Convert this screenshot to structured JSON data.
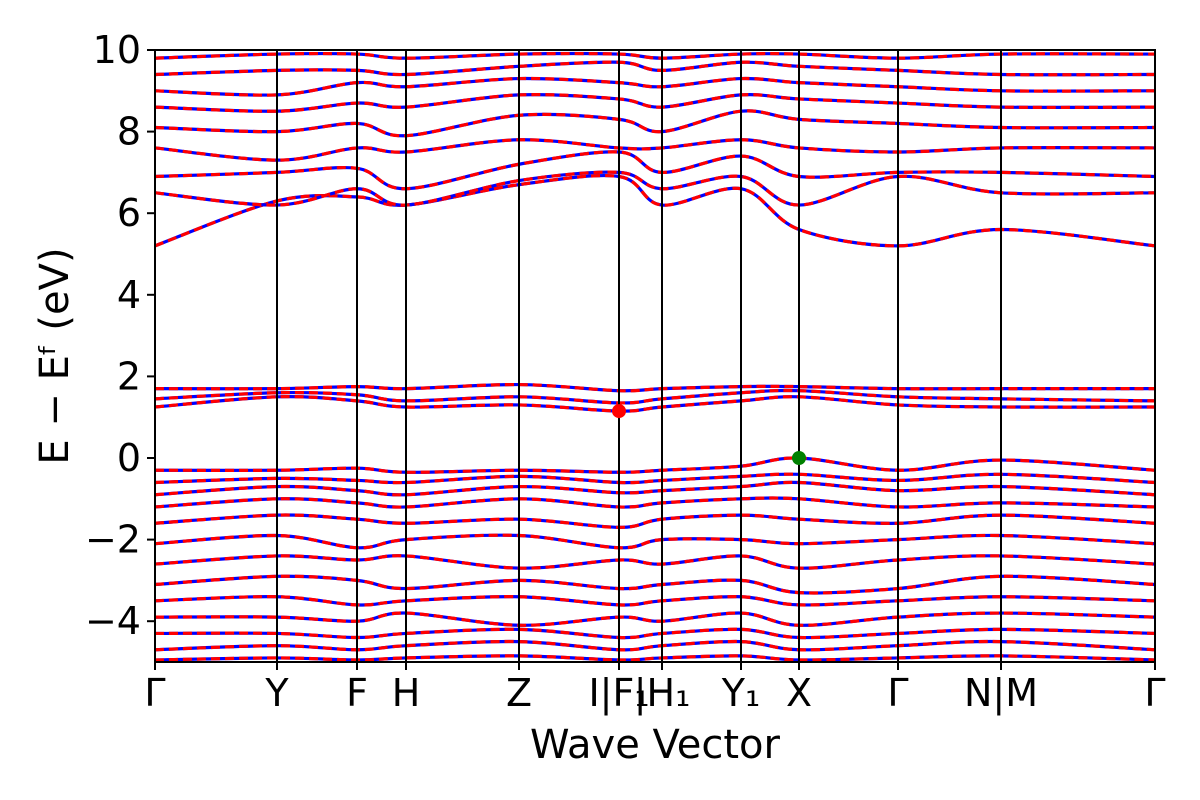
{
  "chart_data": {
    "type": "line",
    "title": "",
    "xlabel": "Wave Vector",
    "ylabel": "E − Eᶠ (eV)",
    "ylim": [
      -5,
      10
    ],
    "yticks": [
      {
        "value": 10,
        "label": "10"
      },
      {
        "value": 8,
        "label": "8"
      },
      {
        "value": 6,
        "label": "6"
      },
      {
        "value": 4,
        "label": "4"
      },
      {
        "value": 2,
        "label": "2"
      },
      {
        "value": 0,
        "label": "0"
      },
      {
        "value": -2,
        "label": "−2"
      },
      {
        "value": -4,
        "label": "−4"
      }
    ],
    "grid": false,
    "kpath": {
      "xlim": [
        0,
        1
      ],
      "points": [
        {
          "x": 0.0,
          "label": "Γ"
        },
        {
          "x": 0.122,
          "label": "Y"
        },
        {
          "x": 0.202,
          "label": "F"
        },
        {
          "x": 0.251,
          "label": "H"
        },
        {
          "x": 0.364,
          "label": "Z"
        },
        {
          "x": 0.464,
          "label": "I|F₁"
        },
        {
          "x": 0.507,
          "label": "|H₁"
        },
        {
          "x": 0.586,
          "label": "Y₁"
        },
        {
          "x": 0.644,
          "label": "X"
        },
        {
          "x": 0.743,
          "label": "Γ"
        },
        {
          "x": 0.846,
          "label": "N|M"
        },
        {
          "x": 1.0,
          "label": "Γ"
        }
      ]
    },
    "series_colors": {
      "line_a": "#ff0000",
      "line_b": "#0000ff"
    },
    "markers": [
      {
        "x": 0.464,
        "y": 1.15,
        "color": "#ff0000"
      },
      {
        "x": 0.644,
        "y": 0.0,
        "color": "#008000"
      }
    ],
    "bands": [
      {
        "x": [
          0,
          0.122,
          0.202,
          0.251,
          0.364,
          0.464,
          0.507,
          0.586,
          0.644,
          0.743,
          0.846,
          1.0
        ],
        "y": [
          5.2,
          6.3,
          6.4,
          6.2,
          6.7,
          6.9,
          6.2,
          6.6,
          5.6,
          5.2,
          5.6,
          5.2
        ]
      },
      {
        "x": [
          0,
          0.122,
          0.202,
          0.251,
          0.364,
          0.464,
          0.507,
          0.586,
          0.644,
          0.743,
          0.846,
          1.0
        ],
        "y": [
          6.5,
          6.2,
          6.6,
          6.2,
          6.8,
          7.0,
          6.6,
          6.9,
          6.2,
          6.9,
          6.5,
          6.5
        ]
      },
      {
        "x": [
          0,
          0.122,
          0.202,
          0.251,
          0.364,
          0.464,
          0.507,
          0.586,
          0.644,
          0.743,
          0.846,
          1.0
        ],
        "y": [
          6.9,
          7.0,
          7.1,
          6.6,
          7.2,
          7.5,
          7.0,
          7.4,
          6.9,
          7.0,
          7.0,
          6.9
        ]
      },
      {
        "x": [
          0,
          0.122,
          0.202,
          0.251,
          0.364,
          0.464,
          0.507,
          0.586,
          0.644,
          0.743,
          0.846,
          1.0
        ],
        "y": [
          7.6,
          7.3,
          7.6,
          7.5,
          7.8,
          7.6,
          7.6,
          7.8,
          7.6,
          7.5,
          7.6,
          7.6
        ]
      },
      {
        "x": [
          0,
          0.122,
          0.202,
          0.251,
          0.364,
          0.464,
          0.507,
          0.586,
          0.644,
          0.743,
          0.846,
          1.0
        ],
        "y": [
          8.1,
          8.0,
          8.2,
          7.9,
          8.4,
          8.3,
          8.0,
          8.5,
          8.3,
          8.2,
          8.1,
          8.1
        ]
      },
      {
        "x": [
          0,
          0.122,
          0.202,
          0.251,
          0.364,
          0.464,
          0.507,
          0.586,
          0.644,
          0.743,
          0.846,
          1.0
        ],
        "y": [
          8.6,
          8.5,
          8.7,
          8.6,
          8.9,
          8.8,
          8.6,
          8.9,
          8.8,
          8.7,
          8.6,
          8.6
        ]
      },
      {
        "x": [
          0,
          0.122,
          0.202,
          0.251,
          0.364,
          0.464,
          0.507,
          0.586,
          0.644,
          0.743,
          0.846,
          1.0
        ],
        "y": [
          9.0,
          8.9,
          9.2,
          9.1,
          9.3,
          9.2,
          9.1,
          9.3,
          9.2,
          9.1,
          9.0,
          9.0
        ]
      },
      {
        "x": [
          0,
          0.122,
          0.202,
          0.251,
          0.364,
          0.464,
          0.507,
          0.586,
          0.644,
          0.743,
          0.846,
          1.0
        ],
        "y": [
          9.4,
          9.5,
          9.5,
          9.4,
          9.6,
          9.7,
          9.5,
          9.7,
          9.6,
          9.5,
          9.4,
          9.4
        ]
      },
      {
        "x": [
          0,
          0.122,
          0.202,
          0.251,
          0.364,
          0.464,
          0.507,
          0.586,
          0.644,
          0.743,
          0.846,
          1.0
        ],
        "y": [
          9.8,
          9.9,
          9.9,
          9.8,
          9.9,
          9.9,
          9.8,
          9.9,
          9.9,
          9.8,
          9.9,
          9.9
        ]
      },
      {
        "x": [
          0,
          0.122,
          0.202,
          0.251,
          0.364,
          0.464,
          0.507,
          0.586,
          0.644,
          0.743,
          0.846,
          1.0
        ],
        "y": [
          1.7,
          1.7,
          1.75,
          1.7,
          1.8,
          1.65,
          1.7,
          1.75,
          1.75,
          1.7,
          1.7,
          1.7
        ]
      },
      {
        "x": [
          0,
          0.122,
          0.202,
          0.251,
          0.364,
          0.464,
          0.507,
          0.586,
          0.644,
          0.743,
          0.846,
          1.0
        ],
        "y": [
          1.45,
          1.6,
          1.55,
          1.4,
          1.5,
          1.35,
          1.45,
          1.6,
          1.65,
          1.5,
          1.45,
          1.4
        ]
      },
      {
        "x": [
          0,
          0.122,
          0.202,
          0.251,
          0.364,
          0.464,
          0.507,
          0.586,
          0.644,
          0.743,
          0.846,
          1.0
        ],
        "y": [
          1.25,
          1.5,
          1.4,
          1.25,
          1.3,
          1.15,
          1.25,
          1.4,
          1.5,
          1.3,
          1.25,
          1.25
        ]
      },
      {
        "x": [
          0,
          0.122,
          0.202,
          0.251,
          0.364,
          0.464,
          0.507,
          0.586,
          0.644,
          0.743,
          0.846,
          1.0
        ],
        "y": [
          -0.3,
          -0.3,
          -0.25,
          -0.35,
          -0.3,
          -0.35,
          -0.3,
          -0.2,
          0.0,
          -0.3,
          -0.05,
          -0.3
        ]
      },
      {
        "x": [
          0,
          0.122,
          0.202,
          0.251,
          0.364,
          0.464,
          0.507,
          0.586,
          0.644,
          0.743,
          0.846,
          1.0
        ],
        "y": [
          -0.6,
          -0.5,
          -0.55,
          -0.6,
          -0.45,
          -0.6,
          -0.55,
          -0.45,
          -0.4,
          -0.55,
          -0.4,
          -0.6
        ]
      },
      {
        "x": [
          0,
          0.122,
          0.202,
          0.251,
          0.364,
          0.464,
          0.507,
          0.586,
          0.644,
          0.743,
          0.846,
          1.0
        ],
        "y": [
          -0.9,
          -0.7,
          -0.8,
          -0.9,
          -0.7,
          -0.85,
          -0.8,
          -0.7,
          -0.6,
          -0.8,
          -0.7,
          -0.9
        ]
      },
      {
        "x": [
          0,
          0.122,
          0.202,
          0.251,
          0.364,
          0.464,
          0.507,
          0.586,
          0.644,
          0.743,
          0.846,
          1.0
        ],
        "y": [
          -1.2,
          -1.0,
          -1.1,
          -1.2,
          -1.0,
          -1.2,
          -1.1,
          -1.0,
          -1.0,
          -1.2,
          -1.1,
          -1.2
        ]
      },
      {
        "x": [
          0,
          0.122,
          0.202,
          0.251,
          0.364,
          0.464,
          0.507,
          0.586,
          0.644,
          0.743,
          0.846,
          1.0
        ],
        "y": [
          -1.6,
          -1.4,
          -1.5,
          -1.6,
          -1.5,
          -1.7,
          -1.5,
          -1.4,
          -1.5,
          -1.6,
          -1.4,
          -1.6
        ]
      },
      {
        "x": [
          0,
          0.122,
          0.202,
          0.251,
          0.364,
          0.464,
          0.507,
          0.586,
          0.644,
          0.743,
          0.846,
          1.0
        ],
        "y": [
          -2.1,
          -1.9,
          -2.2,
          -2.0,
          -1.9,
          -2.2,
          -2.0,
          -2.0,
          -2.1,
          -2.0,
          -1.9,
          -2.1
        ]
      },
      {
        "x": [
          0,
          0.122,
          0.202,
          0.251,
          0.364,
          0.464,
          0.507,
          0.586,
          0.644,
          0.743,
          0.846,
          1.0
        ],
        "y": [
          -2.6,
          -2.4,
          -2.5,
          -2.4,
          -2.7,
          -2.5,
          -2.6,
          -2.4,
          -2.7,
          -2.5,
          -2.4,
          -2.6
        ]
      },
      {
        "x": [
          0,
          0.122,
          0.202,
          0.251,
          0.364,
          0.464,
          0.507,
          0.586,
          0.644,
          0.743,
          0.846,
          1.0
        ],
        "y": [
          -3.1,
          -2.9,
          -3.0,
          -3.2,
          -3.0,
          -3.2,
          -3.1,
          -3.0,
          -3.3,
          -3.2,
          -2.9,
          -3.1
        ]
      },
      {
        "x": [
          0,
          0.122,
          0.202,
          0.251,
          0.364,
          0.464,
          0.507,
          0.586,
          0.644,
          0.743,
          0.846,
          1.0
        ],
        "y": [
          -3.5,
          -3.4,
          -3.6,
          -3.5,
          -3.4,
          -3.6,
          -3.5,
          -3.4,
          -3.6,
          -3.5,
          -3.4,
          -3.5
        ]
      },
      {
        "x": [
          0,
          0.122,
          0.202,
          0.251,
          0.364,
          0.464,
          0.507,
          0.586,
          0.644,
          0.743,
          0.846,
          1.0
        ],
        "y": [
          -3.9,
          -3.9,
          -4.0,
          -3.8,
          -4.1,
          -3.9,
          -4.0,
          -3.8,
          -4.1,
          -3.9,
          -3.8,
          -3.9
        ]
      },
      {
        "x": [
          0,
          0.122,
          0.202,
          0.251,
          0.364,
          0.464,
          0.507,
          0.586,
          0.644,
          0.743,
          0.846,
          1.0
        ],
        "y": [
          -4.3,
          -4.3,
          -4.4,
          -4.3,
          -4.2,
          -4.4,
          -4.3,
          -4.2,
          -4.4,
          -4.3,
          -4.2,
          -4.3
        ]
      },
      {
        "x": [
          0,
          0.122,
          0.202,
          0.251,
          0.364,
          0.464,
          0.507,
          0.586,
          0.644,
          0.743,
          0.846,
          1.0
        ],
        "y": [
          -4.7,
          -4.6,
          -4.7,
          -4.6,
          -4.5,
          -4.7,
          -4.6,
          -4.5,
          -4.7,
          -4.6,
          -4.5,
          -4.7
        ]
      },
      {
        "x": [
          0,
          0.122,
          0.202,
          0.251,
          0.364,
          0.464,
          0.507,
          0.586,
          0.644,
          0.743,
          0.846,
          1.0
        ],
        "y": [
          -4.95,
          -4.9,
          -4.95,
          -4.9,
          -4.85,
          -4.95,
          -4.9,
          -4.85,
          -4.95,
          -4.9,
          -4.85,
          -4.95
        ]
      }
    ]
  }
}
